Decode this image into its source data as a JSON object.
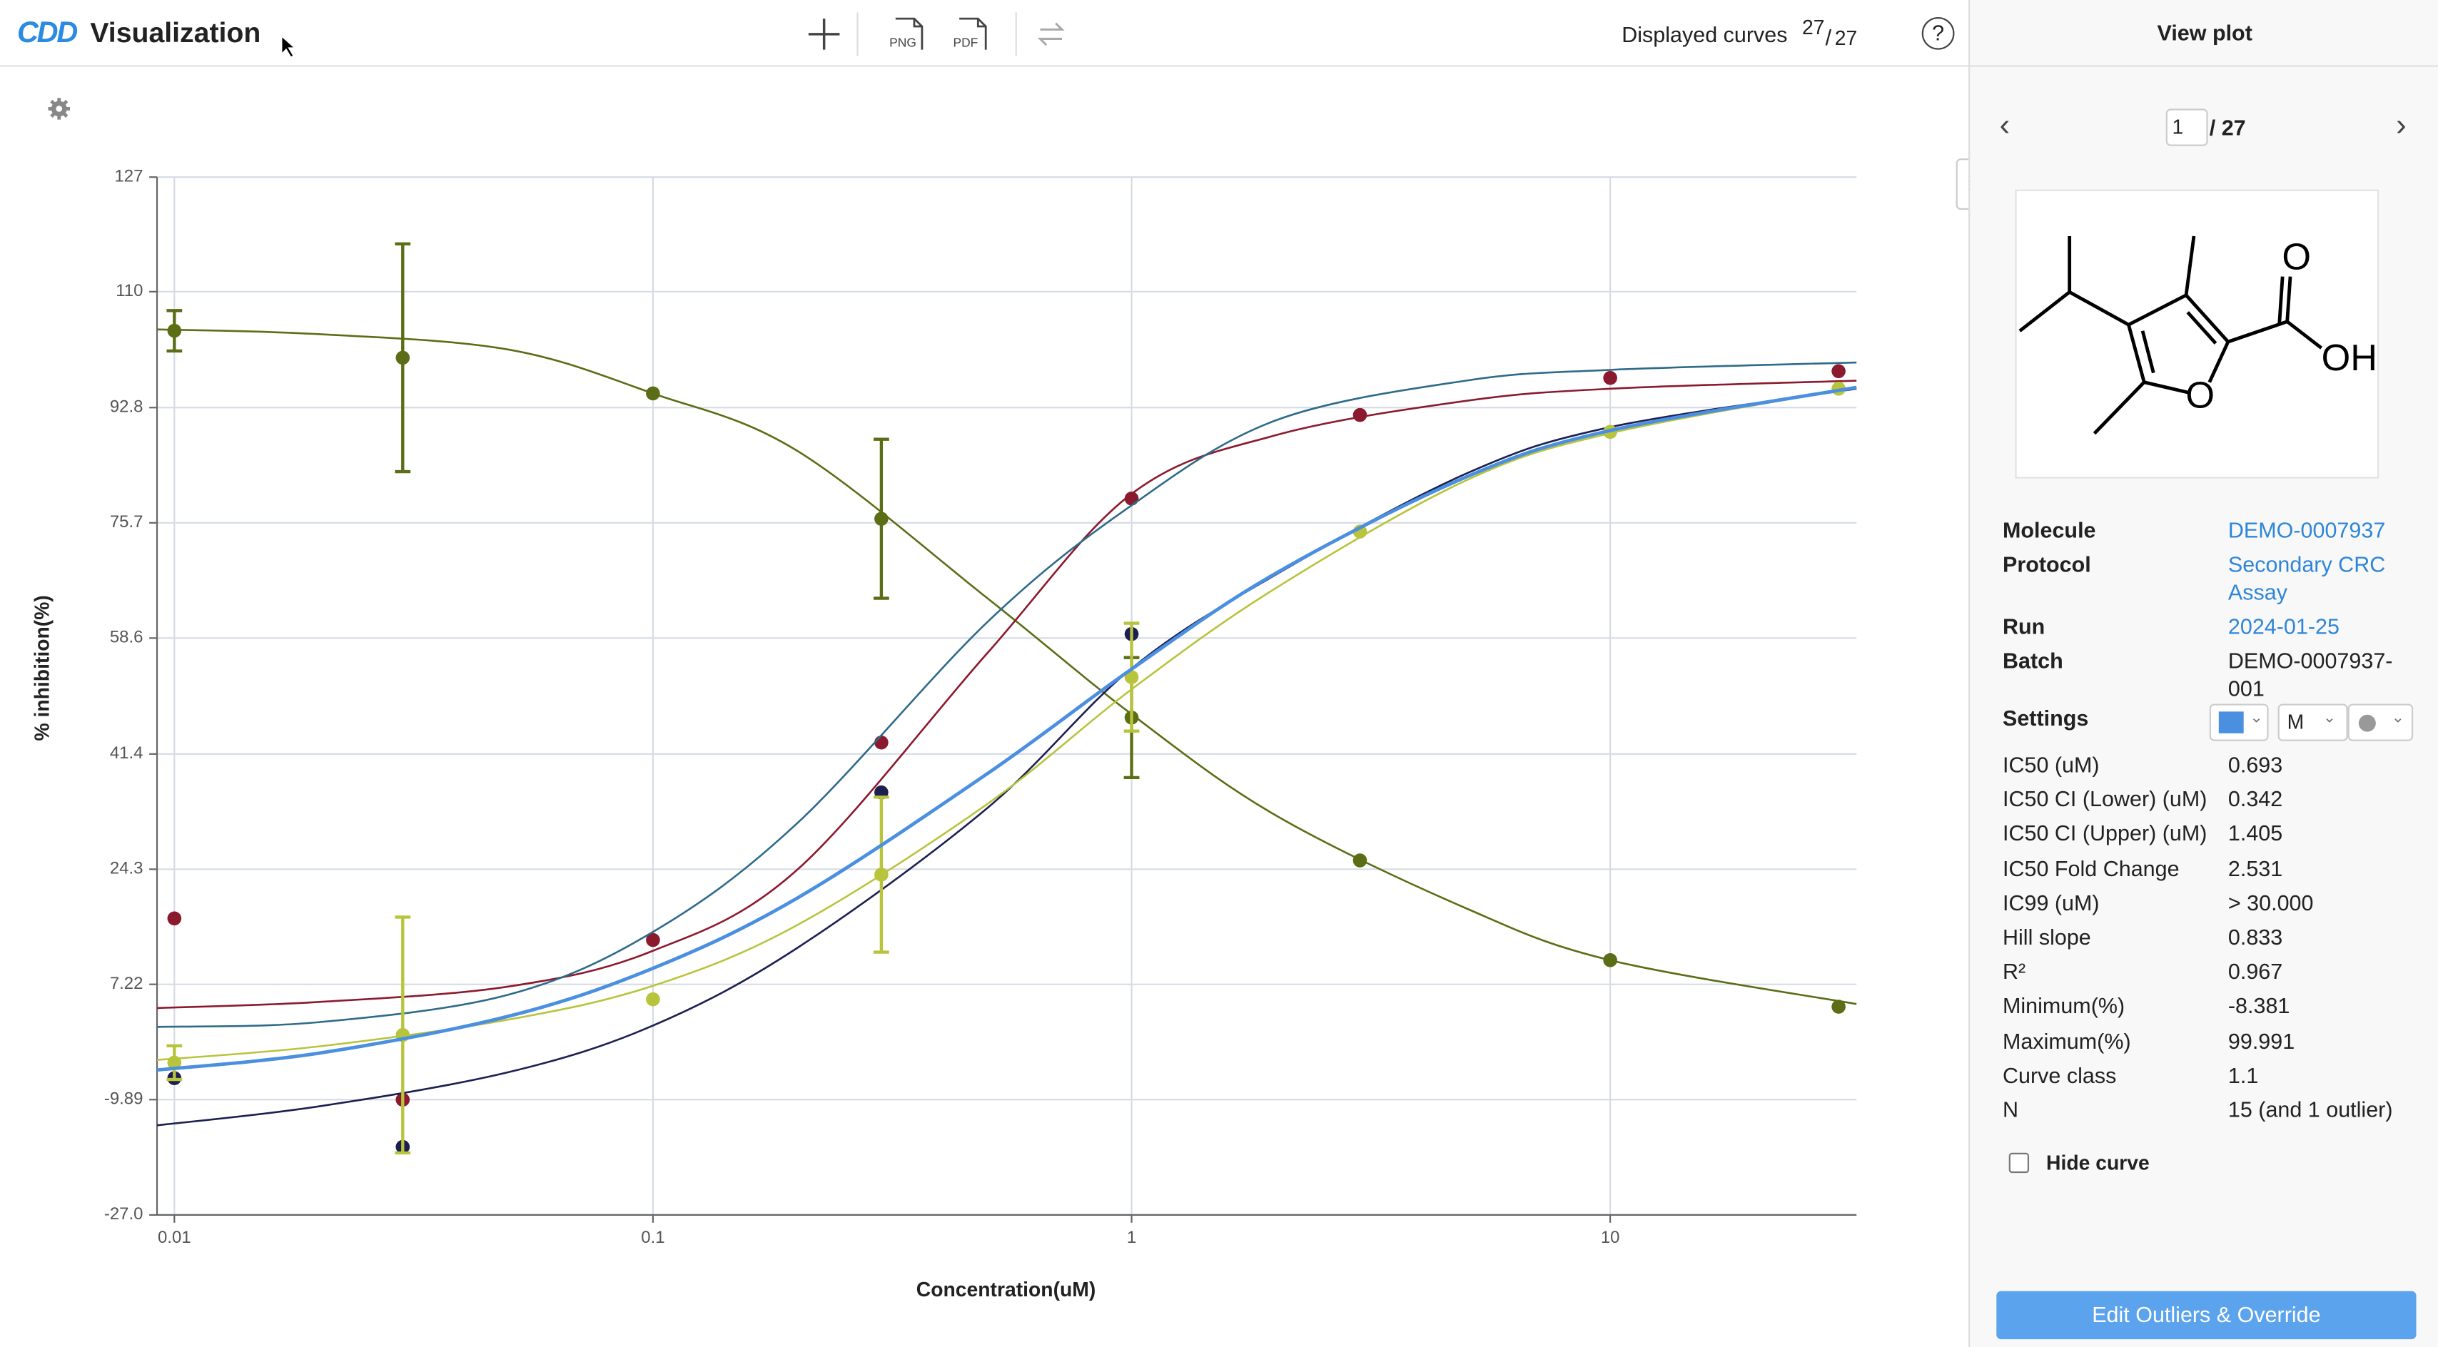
{
  "header": {
    "logo": "CDD",
    "app": "Visualization",
    "png": "PNG",
    "pdf": "PDF",
    "displayed_label": "Displayed curves",
    "displayed": "27",
    "total": "27",
    "help": "?"
  },
  "chart_data": {
    "type": "line",
    "x_label": "Concentration(uM)",
    "y_label": "% inhibition(%)",
    "log_x": true,
    "grid": true,
    "xlim": [
      0.0092,
      32.7
    ],
    "xticks": [
      0.01,
      0.1,
      1,
      10
    ],
    "ylim": [
      -27,
      127
    ],
    "yticks": [
      127,
      110,
      92.8,
      75.7,
      58.6,
      41.4,
      24.3,
      7.22,
      -9.89,
      {
        "value": -27,
        "label": "-27.0"
      }
    ],
    "x": [
      0.01,
      0.03,
      0.1,
      0.3,
      1,
      3,
      10,
      30
    ],
    "fit_x": [
      0.0092,
      0.02,
      0.05,
      0.1,
      0.2,
      0.5,
      1,
      2,
      5,
      10,
      32.7
    ],
    "series": [
      {
        "color": "#5b6e16",
        "values": [
          104.2,
          100.2,
          94.9,
          76.3,
          46.8,
          25.6,
          10.8,
          3.9
        ],
        "errors": [
          3,
          16.9,
          null,
          11.8,
          8.9,
          null,
          null,
          null
        ],
        "fit": [
          104.4,
          103.7,
          101.4,
          94.9,
          86.4,
          64.5,
          47.3,
          32.3,
          18.5,
          10.8,
          4.3
        ]
      },
      {
        "color": "#8c1a2e",
        "values": [
          17.0,
          -9.9,
          13.8,
          43.1,
          79.3,
          91.7,
          97.2,
          98.2
        ],
        "errors": [
          null,
          null,
          null,
          null,
          null,
          null,
          null,
          null
        ],
        "fit": [
          3.7,
          4.6,
          6.9,
          12.2,
          24.2,
          56.4,
          80.0,
          88.7,
          93.8,
          95.6,
          96.8
        ]
      },
      {
        "color": "#2e6b8a",
        "values": [
          null,
          null,
          null,
          null,
          null,
          null,
          null,
          null
        ],
        "errors": [
          null,
          null,
          null,
          null,
          null,
          null,
          null,
          null
        ],
        "fit": [
          0.9,
          1.6,
          5.7,
          15.0,
          31.1,
          61.0,
          78.3,
          90.9,
          96.8,
          98.4,
          99.5
        ]
      },
      {
        "color": "#1c2050",
        "values": [
          -6.7,
          -16.9,
          null,
          35.7,
          59.2,
          null,
          null,
          null
        ],
        "errors": [
          null,
          null,
          null,
          null,
          null,
          null,
          null,
          null
        ],
        "fit": [
          -13.7,
          -10.9,
          -5.8,
          1.1,
          12.6,
          33.4,
          54.1,
          68.0,
          83.0,
          89.9,
          95.6
        ]
      },
      {
        "color": "#b8c43c",
        "values": [
          -4.4,
          -0.3,
          5.0,
          23.5,
          52.8,
          74.4,
          89.2,
          95.6
        ],
        "errors": [
          2.5,
          17.5,
          null,
          11.5,
          8,
          null,
          null,
          null
        ],
        "fit": [
          -4,
          -2,
          2,
          7,
          16,
          34,
          51,
          66,
          82,
          89,
          95.8
        ]
      },
      {
        "color": "#4a8fe0",
        "values": [
          null,
          null,
          null,
          null,
          null,
          null,
          null,
          null
        ],
        "errors": [
          null,
          null,
          null,
          null,
          null,
          null,
          null,
          null
        ],
        "fit": [
          -5.5,
          -3.0,
          2.5,
          9.6,
          20.0,
          38.5,
          54.0,
          68.2,
          82.5,
          89.4,
          95.8
        ]
      }
    ]
  },
  "panel": {
    "title": "View plot",
    "page": "1",
    "of": "/ 27",
    "structure": {
      "atoms": [
        "O",
        "OH",
        "O"
      ]
    },
    "details": [
      {
        "label": "Molecule",
        "value": "DEMO-0007937"
      },
      {
        "label": "Protocol",
        "value": "Secondary CRC Assay"
      },
      {
        "label": "Run",
        "value": "2024-01-25"
      },
      {
        "label": "Batch",
        "value": "DEMO-0007937-001"
      }
    ],
    "settings": {
      "label": "Settings",
      "marker": "M"
    },
    "results": [
      {
        "label": "IC50 (uM)",
        "value": "0.693"
      },
      {
        "label": "IC50 CI (Lower) (uM)",
        "value": "0.342"
      },
      {
        "label": "IC50 CI (Upper) (uM)",
        "value": "1.405"
      },
      {
        "label": "IC50 Fold Change",
        "value": "2.531"
      },
      {
        "label": "IC99 (uM)",
        "value": "> 30.000"
      },
      {
        "label": "Hill slope",
        "value": "0.833"
      },
      {
        "label": "R²",
        "value": "0.967"
      },
      {
        "label": "Minimum(%)",
        "value": "-8.381"
      },
      {
        "label": "Maximum(%)",
        "value": "99.991"
      },
      {
        "label": "Curve class",
        "value": "1.1"
      },
      {
        "label": "N",
        "value": "15 (and 1 outlier)"
      }
    ],
    "hide_curve": "Hide curve",
    "button": "Edit Outliers & Override"
  }
}
